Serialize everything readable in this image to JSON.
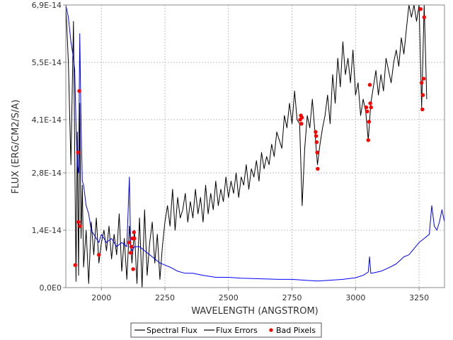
{
  "chart_data": {
    "type": "line",
    "xlabel": "WAVELENGTH (ANGSTROM)",
    "ylabel": "FLUX (ERG/CM2/S/A)",
    "xlim": [
      1860,
      3350
    ],
    "ylim": [
      0,
      6.9e-14
    ],
    "x_ticks": [
      2000,
      2250,
      2500,
      2750,
      3000,
      3250
    ],
    "x_tick_labels": [
      "2000",
      "2250",
      "2500",
      "2750",
      "3000",
      "3250"
    ],
    "y_ticks": [
      0,
      1.4e-14,
      2.8e-14,
      4.1e-14,
      5.5e-14,
      6.9e-14
    ],
    "y_tick_labels": [
      "0,0E0",
      "1,4E-14",
      "2,8E-14",
      "4,1E-14",
      "5,5E-14",
      "6,9E-14"
    ],
    "grid": true,
    "legend_position": "bottom-center",
    "series": [
      {
        "name": "Spectral Flux",
        "color": "#000000",
        "x": [
          1860,
          1870,
          1880,
          1890,
          1900,
          1905,
          1910,
          1915,
          1920,
          1925,
          1930,
          1940,
          1950,
          1960,
          1970,
          1980,
          1990,
          2000,
          2010,
          2020,
          2030,
          2040,
          2050,
          2060,
          2070,
          2080,
          2090,
          2100,
          2110,
          2120,
          2130,
          2140,
          2150,
          2160,
          2170,
          2180,
          2190,
          2200,
          2210,
          2220,
          2230,
          2240,
          2250,
          2260,
          2270,
          2280,
          2290,
          2300,
          2310,
          2320,
          2330,
          2340,
          2350,
          2360,
          2370,
          2380,
          2390,
          2400,
          2410,
          2420,
          2430,
          2440,
          2450,
          2460,
          2470,
          2480,
          2490,
          2500,
          2510,
          2520,
          2530,
          2540,
          2550,
          2560,
          2570,
          2580,
          2590,
          2600,
          2610,
          2620,
          2630,
          2640,
          2650,
          2660,
          2670,
          2680,
          2690,
          2700,
          2710,
          2720,
          2730,
          2740,
          2750,
          2760,
          2770,
          2780,
          2790,
          2800,
          2810,
          2820,
          2830,
          2840,
          2850,
          2860,
          2870,
          2880,
          2890,
          2900,
          2910,
          2920,
          2930,
          2940,
          2950,
          2960,
          2970,
          2980,
          2990,
          3000,
          3010,
          3020,
          3030,
          3040,
          3050,
          3060,
          3070,
          3080,
          3090,
          3100,
          3110,
          3120,
          3130,
          3140,
          3150,
          3160,
          3170,
          3180,
          3190,
          3200,
          3210,
          3220,
          3230,
          3240,
          3250,
          3260,
          3270,
          3280
        ],
        "values": [
          6.9e-14,
          5.5e-14,
          3e-14,
          6.5e-14,
          1.5e-15,
          3.8e-14,
          3e-15,
          4.5e-14,
          1.2e-14,
          2.5e-14,
          5e-15,
          1.4e-14,
          1e-15,
          1.6e-14,
          8e-15,
          1.7e-14,
          6e-15,
          1.1e-14,
          1.4e-14,
          9e-15,
          1.5e-14,
          7e-15,
          1.3e-14,
          8e-15,
          1.8e-14,
          4e-15,
          1.2e-14,
          2e-15,
          1.5e-14,
          6e-15,
          1.4e-14,
          1e-15,
          1.7e-14,
          0.0,
          1.9e-14,
          3e-15,
          1.1e-14,
          1.6e-14,
          6e-15,
          1.3e-14,
          2e-15,
          1e-14,
          1.6e-14,
          2e-14,
          1.5e-14,
          2.4e-14,
          1.4e-14,
          2.2e-14,
          1.7e-14,
          1.9e-14,
          2.3e-14,
          1.6e-14,
          2.1e-14,
          1.7e-14,
          2.4e-14,
          1.8e-14,
          2.2e-14,
          1.6e-14,
          2.5e-14,
          1.8e-14,
          2.3e-14,
          1.9e-14,
          2.6e-14,
          2e-14,
          2.4e-14,
          2.1e-14,
          2.7e-14,
          2.2e-14,
          2.6e-14,
          2.3e-14,
          2.8e-14,
          2.2e-14,
          2.7e-14,
          2.5e-14,
          3e-14,
          2.4e-14,
          2.9e-14,
          2.7e-14,
          3.1e-14,
          2.6e-14,
          3.3e-14,
          2.9e-14,
          3.2e-14,
          3e-14,
          3.5e-14,
          3.2e-14,
          3.8e-14,
          3.6e-14,
          3.4e-14,
          4.2e-14,
          3.9e-14,
          4.5e-14,
          4e-14,
          4.8e-14,
          4.1e-14,
          4e-14,
          2e-14,
          3.4e-14,
          4.2e-14,
          3.9e-14,
          4.6e-14,
          3.8e-14,
          3e-14,
          3.5e-14,
          3.9e-14,
          4.2e-14,
          4.7e-14,
          4e-14,
          5.2e-14,
          4.5e-14,
          5.6e-14,
          4.9e-14,
          6e-14,
          5.2e-14,
          5.6e-14,
          5e-14,
          5.8e-14,
          4.7e-14,
          5e-14,
          4.2e-14,
          4.6e-14,
          4.3e-14,
          3.6e-14,
          4.5e-14,
          4.9e-14,
          5.3e-14,
          4.7e-14,
          5.2e-14,
          4.8e-14,
          5.6e-14,
          5.3e-14,
          5e-14,
          5.5e-14,
          5.8e-14,
          5.4e-14,
          6.1e-14,
          5.7e-14,
          6.3e-14,
          6.9e-14,
          6.6e-14,
          6.9e-14,
          6.5e-14,
          6.9e-14,
          4.4e-14,
          6.9e-14,
          4.6e-14
        ]
      },
      {
        "name": "Flux Errors",
        "color": "#0000ff",
        "x": [
          1860,
          1870,
          1880,
          1890,
          1895,
          1900,
          1905,
          1910,
          1915,
          1920,
          1925,
          1930,
          1940,
          1950,
          1960,
          1970,
          1980,
          1990,
          2000,
          2020,
          2040,
          2060,
          2080,
          2100,
          2110,
          2115,
          2120,
          2130,
          2150,
          2170,
          2190,
          2210,
          2230,
          2250,
          2270,
          2300,
          2330,
          2360,
          2400,
          2450,
          2500,
          2550,
          2600,
          2650,
          2700,
          2750,
          2800,
          2850,
          2900,
          2950,
          3000,
          3030,
          3050,
          3055,
          3060,
          3070,
          3100,
          3130,
          3160,
          3190,
          3210,
          3230,
          3250,
          3270,
          3290,
          3300,
          3310,
          3320,
          3330,
          3340,
          3350
        ],
        "values": [
          6.9e-14,
          6.6e-14,
          6e-14,
          5.6e-14,
          5.3e-14,
          4e-14,
          3e-14,
          2.8e-14,
          6.2e-14,
          4e-14,
          2.6e-14,
          2.5e-14,
          2e-14,
          1.8e-14,
          1.4e-14,
          1.3e-14,
          1.2e-14,
          1.1e-14,
          1.3e-14,
          1.1e-14,
          1.2e-14,
          1e-14,
          1.1e-14,
          1e-14,
          2.7e-14,
          1e-14,
          9e-15,
          1e-14,
          1e-14,
          9e-15,
          8e-15,
          7e-15,
          6e-15,
          5.5e-15,
          5e-15,
          4e-15,
          3.5e-15,
          3.5e-15,
          3e-15,
          2.5e-15,
          2.5e-15,
          2.3e-15,
          2.2e-15,
          2.1e-15,
          2e-15,
          2e-15,
          1.8e-15,
          1.6e-15,
          1.8e-15,
          2e-15,
          2.4e-15,
          3e-15,
          3.8e-15,
          7.5e-15,
          3.5e-15,
          3.6e-15,
          4e-15,
          4.8e-15,
          5.8e-15,
          7.5e-15,
          8e-15,
          9.5e-15,
          1.1e-14,
          1.2e-14,
          1.3e-14,
          2e-14,
          1.5e-14,
          1.4e-14,
          1.6e-14,
          1.9e-14,
          1.6e-14
        ]
      },
      {
        "name": "Bad Pixels",
        "type": "scatter",
        "color": "#ff0000",
        "x": [
          1897,
          1908,
          1910,
          1913,
          1916,
          1990,
          2110,
          2115,
          2118,
          2122,
          2125,
          2128,
          2130,
          2782,
          2785,
          2787,
          2789,
          2843,
          2845,
          2847,
          2849,
          2851,
          3042,
          3046,
          3050,
          3053,
          3056,
          3058,
          3061,
          3256,
          3260,
          3263,
          3265,
          3268,
          3270
        ],
        "values": [
          5.5e-15,
          3.3e-14,
          1.6e-14,
          4.8e-14,
          1.5e-14,
          8e-15,
          1.1e-14,
          8.5e-15,
          1e-14,
          1.2e-14,
          4.5e-15,
          1.35e-14,
          1.2e-14,
          4.1e-14,
          4.2e-14,
          4e-14,
          4.15e-14,
          3.8e-14,
          3.7e-14,
          3.55e-14,
          3.3e-14,
          2.9e-14,
          4.4e-14,
          4.3e-14,
          3.6e-14,
          4.05e-14,
          4.95e-14,
          4.5e-14,
          4.4e-14,
          6.8e-14,
          5e-14,
          4.35e-14,
          4.7e-14,
          5.1e-14,
          6.6e-14
        ]
      }
    ]
  }
}
